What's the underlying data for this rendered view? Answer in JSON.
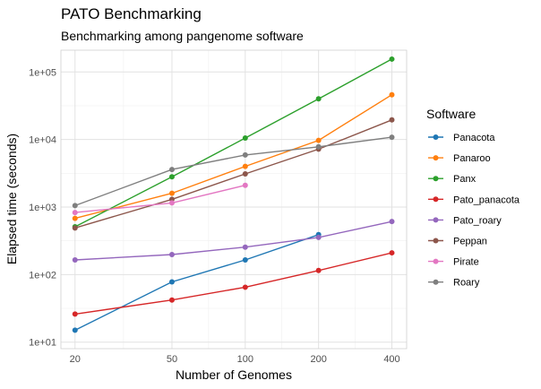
{
  "chart_data": {
    "type": "line",
    "title": "PATO Benchmarking",
    "subtitle": "Benchmarking among pangenome software",
    "xlabel": "Number of Genomes",
    "ylabel": "Elapsed time (seconds)",
    "x_scale": "log10",
    "y_scale": "log10",
    "xlim": [
      17.5,
      460
    ],
    "ylim": [
      8,
      210000
    ],
    "x_ticks": [
      20,
      50,
      100,
      200,
      400
    ],
    "x_tick_labels": [
      "20",
      "50",
      "100",
      "200",
      "400"
    ],
    "y_ticks": [
      10,
      100,
      1000,
      10000,
      100000
    ],
    "y_tick_labels": [
      "1e+01",
      "1e+02",
      "1e+03",
      "1e+04",
      "1e+05"
    ],
    "grid": true,
    "legend_title": "Software",
    "legend_position": "right",
    "series": [
      {
        "name": "Panacota",
        "color": "#1f77b4",
        "x": [
          20,
          50,
          100,
          200
        ],
        "y": [
          15,
          78,
          165,
          390
        ]
      },
      {
        "name": "Panaroo",
        "color": "#ff7f0e",
        "x": [
          20,
          50,
          100,
          200,
          400
        ],
        "y": [
          680,
          1600,
          4000,
          9700,
          46000
        ]
      },
      {
        "name": "Panx",
        "color": "#2ca02c",
        "x": [
          20,
          50,
          100,
          200,
          400
        ],
        "y": [
          510,
          2800,
          10500,
          40000,
          155000
        ]
      },
      {
        "name": "Pato_panacota",
        "color": "#d62728",
        "x": [
          20,
          50,
          100,
          200,
          400
        ],
        "y": [
          26,
          42,
          65,
          115,
          210
        ]
      },
      {
        "name": "Pato_roary",
        "color": "#9467bd",
        "x": [
          20,
          50,
          100,
          200,
          400
        ],
        "y": [
          165,
          198,
          255,
          355,
          610
        ]
      },
      {
        "name": "Peppan",
        "color": "#8c564b",
        "x": [
          20,
          50,
          100,
          200,
          400
        ],
        "y": [
          490,
          1300,
          3100,
          7200,
          19500
        ]
      },
      {
        "name": "Pirate",
        "color": "#e377c2",
        "x": [
          20,
          50,
          100
        ],
        "y": [
          830,
          1150,
          2100
        ]
      },
      {
        "name": "Roary",
        "color": "#7f7f7f",
        "x": [
          20,
          50,
          100,
          200,
          400
        ],
        "y": [
          1050,
          3600,
          5900,
          7800,
          10800
        ]
      }
    ]
  }
}
